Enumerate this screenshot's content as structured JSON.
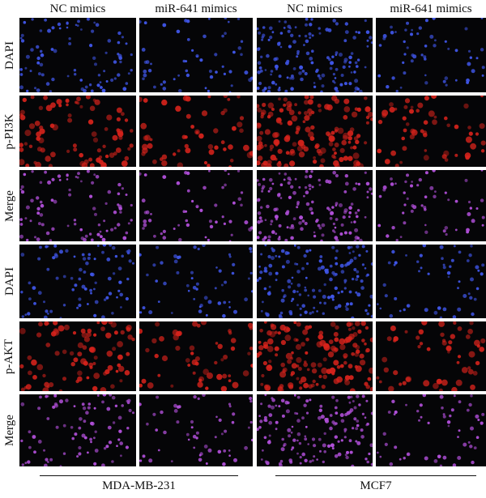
{
  "figure": {
    "column_headers": [
      "NC mimics",
      "miR-641 mimics",
      "NC mimics",
      "miR-641 mimics"
    ],
    "row_labels": [
      "DAPI",
      "p-PI3K",
      "Merge",
      "DAPI",
      "p-AKT",
      "Merge"
    ],
    "groups": [
      {
        "label": "MDA-MB-231",
        "columns": [
          0,
          1
        ]
      },
      {
        "label": "MCF7",
        "columns": [
          2,
          3
        ]
      }
    ],
    "channel_colors": {
      "DAPI": "#3f55e6",
      "p-PI3K": "#d8231c",
      "p-AKT": "#d8231c",
      "Merge": "#b04fd8"
    },
    "panel_background": "#050507",
    "cell_density_by_column": [
      "medium",
      "low",
      "high",
      "low"
    ]
  }
}
